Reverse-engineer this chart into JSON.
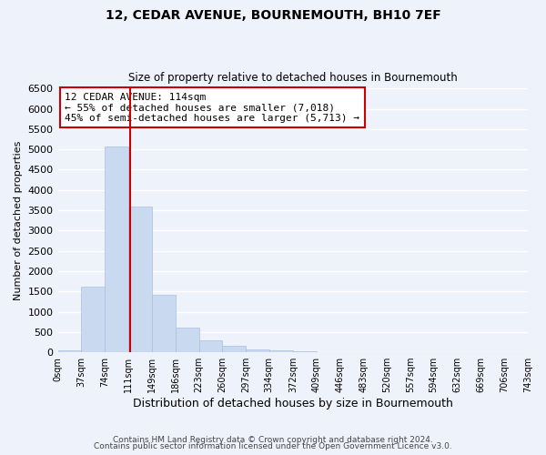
{
  "title": "12, CEDAR AVENUE, BOURNEMOUTH, BH10 7EF",
  "subtitle": "Size of property relative to detached houses in Bournemouth",
  "xlabel": "Distribution of detached houses by size in Bournemouth",
  "ylabel": "Number of detached properties",
  "bar_edges": [
    0,
    37,
    74,
    111,
    149,
    186,
    223,
    260,
    297,
    334,
    372,
    409,
    446,
    483,
    520,
    557,
    594,
    632,
    669,
    706,
    743
  ],
  "bar_heights": [
    50,
    1620,
    5070,
    3580,
    1420,
    615,
    300,
    150,
    80,
    55,
    25,
    10,
    5,
    2,
    1,
    0,
    0,
    0,
    0,
    0
  ],
  "bar_color": "#c9d9f0",
  "bar_edge_color": "#a8c0e0",
  "vline_x": 114,
  "vline_color": "#cc0000",
  "ylim": [
    0,
    6500
  ],
  "yticks": [
    0,
    500,
    1000,
    1500,
    2000,
    2500,
    3000,
    3500,
    4000,
    4500,
    5000,
    5500,
    6000,
    6500
  ],
  "annotation_title": "12 CEDAR AVENUE: 114sqm",
  "annotation_line1": "← 55% of detached houses are smaller (7,018)",
  "annotation_line2": "45% of semi-detached houses are larger (5,713) →",
  "annotation_box_color": "#ffffff",
  "annotation_box_edge_color": "#cc0000",
  "footer1": "Contains HM Land Registry data © Crown copyright and database right 2024.",
  "footer2": "Contains public sector information licensed under the Open Government Licence v3.0.",
  "background_color": "#eef2fb",
  "grid_color": "#ffffff",
  "tick_labels": [
    "0sqm",
    "37sqm",
    "74sqm",
    "111sqm",
    "149sqm",
    "186sqm",
    "223sqm",
    "260sqm",
    "297sqm",
    "334sqm",
    "372sqm",
    "409sqm",
    "446sqm",
    "483sqm",
    "520sqm",
    "557sqm",
    "594sqm",
    "632sqm",
    "669sqm",
    "706sqm",
    "743sqm"
  ]
}
